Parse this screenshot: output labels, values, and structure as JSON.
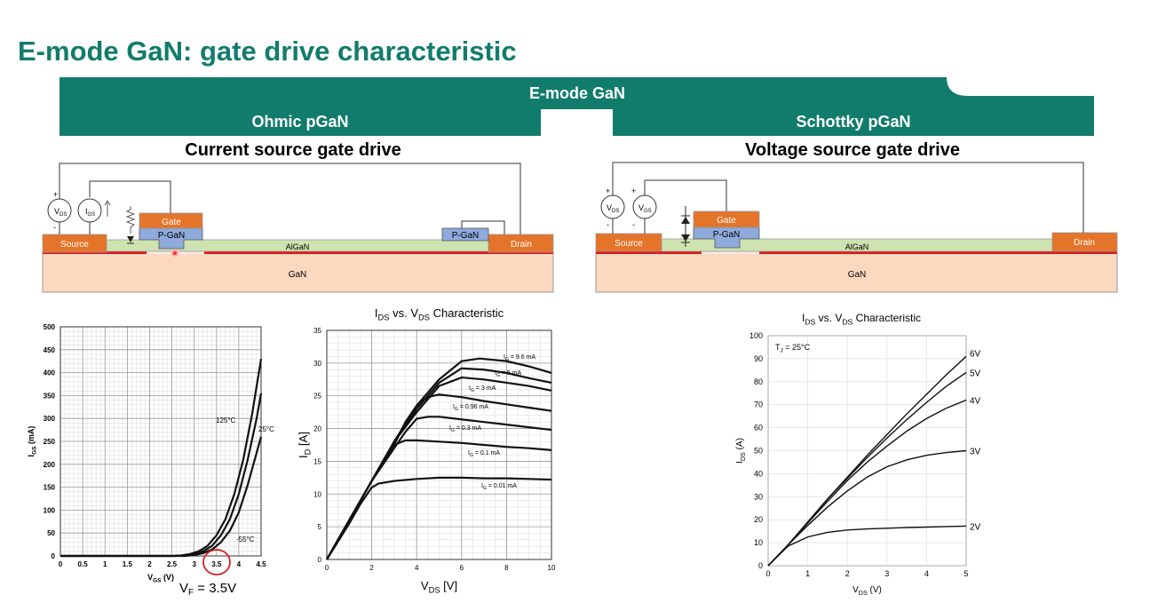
{
  "title": "E-mode GaN: gate drive characteristic",
  "banner": {
    "main": "E-mode GaN",
    "left": "Ohmic pGaN",
    "right": "Schottky pGaN",
    "color": "#127c6c"
  },
  "left_panel": {
    "heading": "Current source gate drive",
    "labels": {
      "source": "Source",
      "drain": "Drain",
      "gate": "Gate",
      "pgan": "P-GaN",
      "pgan2": "P-GaN",
      "algan": "AlGaN",
      "gan": "GaN",
      "vds": "V",
      "vds_sub": "DS",
      "igs": "I",
      "igs_sub": "GS"
    }
  },
  "right_panel": {
    "heading": "Voltage source gate drive",
    "labels": {
      "source": "Source",
      "drain": "Drain",
      "gate": "Gate",
      "pgan": "P-GaN",
      "algan": "AlGaN",
      "gan": "GaN",
      "vds": "V",
      "vds_sub": "DS",
      "vgs": "V",
      "vgs_sub": "GS"
    }
  },
  "vf_note": {
    "main": "V",
    "sub": "F",
    "rest": " = 3.5V"
  },
  "chart_data": [
    {
      "type": "line",
      "title": "",
      "xlabel": "V",
      "xlabel_sub": "GS",
      "xlabel_unit": " (V)",
      "ylabel": "I",
      "ylabel_sub": "GS",
      "ylabel_unit": " (mA)",
      "xlim": [
        0,
        4.5
      ],
      "ylim": [
        0,
        500
      ],
      "xticks": [
        "0",
        "0.5",
        "1",
        "1.5",
        "2",
        "2.5",
        "3",
        "3.5",
        "4",
        "4.5"
      ],
      "yticks": [
        "0",
        "50",
        "100",
        "150",
        "200",
        "250",
        "300",
        "350",
        "400",
        "450",
        "500"
      ],
      "grid": true,
      "series": [
        {
          "name": "125°C",
          "x": [
            0,
            2.5,
            2.7,
            2.9,
            3.1,
            3.3,
            3.5,
            3.7,
            3.9,
            4.1,
            4.3,
            4.5
          ],
          "y": [
            0,
            0,
            1,
            4,
            10,
            22,
            45,
            80,
            135,
            210,
            310,
            430
          ]
        },
        {
          "name": "25°C",
          "x": [
            0,
            2.6,
            2.8,
            3.0,
            3.2,
            3.4,
            3.6,
            3.8,
            4.0,
            4.2,
            4.4,
            4.5
          ],
          "y": [
            0,
            0,
            1,
            4,
            10,
            22,
            45,
            80,
            135,
            210,
            300,
            355
          ]
        },
        {
          "name": "-55°C",
          "x": [
            0,
            2.8,
            3.0,
            3.2,
            3.4,
            3.6,
            3.8,
            4.0,
            4.2,
            4.4,
            4.5
          ],
          "y": [
            0,
            0,
            2,
            6,
            14,
            30,
            55,
            95,
            155,
            225,
            260
          ]
        }
      ]
    },
    {
      "type": "line",
      "title": "I",
      "title_sub1": "DS",
      "title_mid": " vs. V",
      "title_sub2": "DS",
      "title_rest": " Characteristic",
      "xlabel": "V",
      "xlabel_sub": "DS",
      "xlabel_unit": " [V]",
      "ylabel": "I",
      "ylabel_sub": "D",
      "ylabel_unit": " [A]",
      "xlim": [
        0,
        10
      ],
      "ylim": [
        0,
        35
      ],
      "xticks": [
        "0",
        "2",
        "4",
        "6",
        "8",
        "10"
      ],
      "yticks": [
        "0",
        "5",
        "10",
        "15",
        "20",
        "25",
        "30",
        "35"
      ],
      "grid": true,
      "series": [
        {
          "name": "I",
          "name_sub": "G",
          "name_rest": " = 9.6 mA",
          "x": [
            0,
            1,
            2,
            3,
            4,
            5,
            6,
            6.8,
            8,
            9,
            10
          ],
          "y": [
            0,
            6,
            12,
            18,
            23.5,
            27.5,
            30.3,
            30.7,
            30.3,
            29.5,
            28.5
          ]
        },
        {
          "name": "I",
          "name_sub": "G",
          "name_rest": " = 5 mA",
          "x": [
            0,
            1,
            2,
            3,
            4,
            5,
            6,
            7,
            8,
            9,
            10
          ],
          "y": [
            0,
            6,
            12,
            18,
            23,
            27,
            29.2,
            29,
            28.5,
            27.7,
            27
          ]
        },
        {
          "name": "I",
          "name_sub": "G",
          "name_rest": " = 3 mA",
          "x": [
            0,
            1,
            2,
            3,
            4,
            5,
            6,
            7,
            8,
            9,
            10
          ],
          "y": [
            0,
            6,
            12,
            18,
            22.5,
            26.5,
            27.8,
            27.5,
            27,
            26.5,
            25.8
          ]
        },
        {
          "name": "I",
          "name_sub": "G",
          "name_rest": " = 0.96 mA",
          "x": [
            0,
            1,
            2,
            3,
            3.5,
            4,
            4.5,
            5,
            6,
            7,
            8,
            9,
            10
          ],
          "y": [
            0,
            6,
            12,
            17.5,
            21,
            23.5,
            24.8,
            25.2,
            24.8,
            24.2,
            23.7,
            23.2,
            22.7
          ]
        },
        {
          "name": "I",
          "name_sub": "G",
          "name_rest": " = 0.3 mA",
          "x": [
            0,
            1,
            2,
            3,
            3.5,
            4,
            4.5,
            5,
            6,
            7,
            8,
            9,
            10
          ],
          "y": [
            0,
            6,
            12,
            17,
            19.5,
            21.5,
            21.8,
            21.8,
            21.4,
            21.0,
            20.6,
            20.2,
            19.8
          ]
        },
        {
          "name": "I",
          "name_sub": "G",
          "name_rest": " = 0.1 mA",
          "x": [
            0,
            1,
            2,
            2.5,
            3,
            3.5,
            4,
            5,
            6,
            7,
            8,
            9,
            10
          ],
          "y": [
            0,
            6,
            12,
            15,
            17.5,
            18.2,
            18.2,
            18,
            17.8,
            17.5,
            17.2,
            17,
            16.7
          ]
        },
        {
          "name": "I",
          "name_sub": "G",
          "name_rest": " = 0.01 mA",
          "x": [
            0,
            1,
            1.5,
            2,
            2.3,
            3,
            4,
            5,
            6,
            7,
            8,
            9,
            10
          ],
          "y": [
            0,
            5.5,
            8.5,
            11,
            11.6,
            12,
            12.3,
            12.5,
            12.5,
            12.4,
            12.4,
            12.3,
            12.2
          ]
        }
      ]
    },
    {
      "type": "line",
      "title": "I",
      "title_sub1": "DS",
      "title_mid": " vs. V",
      "title_sub2": "DS",
      "title_rest": " Characteristic",
      "annotation": "T",
      "annotation_sub": "J",
      "annotation_rest": " = 25°C",
      "xlabel": "V",
      "xlabel_sub": "DS",
      "xlabel_unit": " (V)",
      "ylabel": "I",
      "ylabel_sub": "DS",
      "ylabel_unit": " (A)",
      "xlim": [
        0,
        5
      ],
      "ylim": [
        0,
        100
      ],
      "xticks": [
        "0",
        "1",
        "2",
        "3",
        "4",
        "5"
      ],
      "yticks": [
        "0",
        "10",
        "20",
        "30",
        "40",
        "50",
        "60",
        "70",
        "80",
        "90",
        "100"
      ],
      "grid": true,
      "series": [
        {
          "name": "6V",
          "x": [
            0,
            0.5,
            1,
            1.5,
            2,
            2.5,
            3,
            3.5,
            4,
            4.5,
            5
          ],
          "y": [
            0,
            9,
            19,
            29,
            38.5,
            48,
            57,
            66,
            74.5,
            83,
            91
          ]
        },
        {
          "name": "5V",
          "x": [
            0,
            0.5,
            1,
            1.5,
            2,
            2.5,
            3,
            3.5,
            4,
            4.5,
            5
          ],
          "y": [
            0,
            9,
            19,
            29,
            38,
            47,
            55.5,
            63.5,
            71,
            78,
            84
          ]
        },
        {
          "name": "4V",
          "x": [
            0,
            0.5,
            1,
            1.5,
            2,
            2.5,
            3,
            3.5,
            4,
            4.5,
            5
          ],
          "y": [
            0,
            9,
            18.5,
            28,
            37,
            45,
            52,
            58.5,
            64,
            68.5,
            72
          ]
        },
        {
          "name": "3V",
          "x": [
            0,
            0.5,
            1,
            1.5,
            2,
            2.5,
            3,
            3.5,
            4,
            4.5,
            5
          ],
          "y": [
            0,
            9,
            17.5,
            25.5,
            32.5,
            38.5,
            43,
            46,
            48,
            49.2,
            50
          ]
        },
        {
          "name": "2V",
          "x": [
            0,
            0.5,
            1,
            1.5,
            2,
            2.5,
            3,
            3.5,
            4,
            4.5,
            5
          ],
          "y": [
            0,
            8.5,
            12.5,
            14.5,
            15.5,
            16,
            16.3,
            16.6,
            16.8,
            17,
            17.2
          ]
        }
      ]
    }
  ]
}
